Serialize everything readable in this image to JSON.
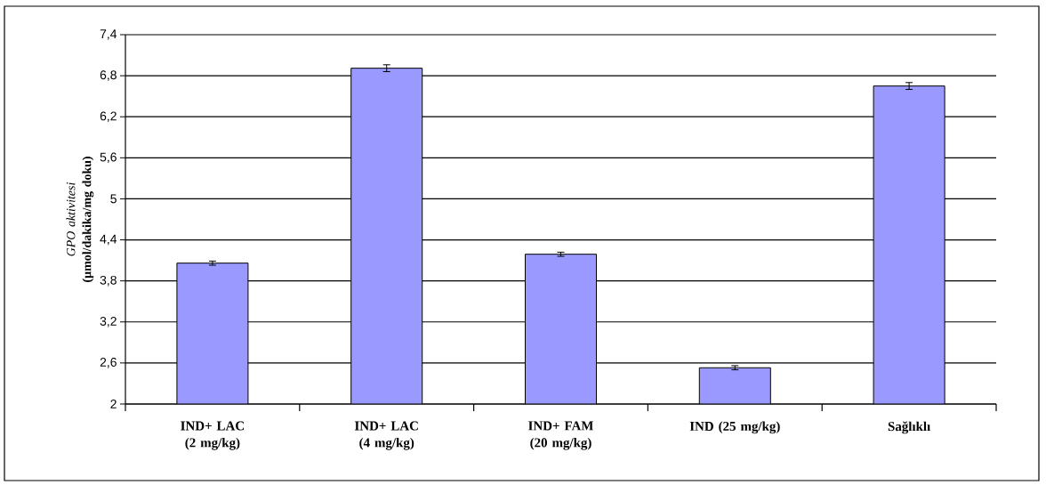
{
  "chart_data": {
    "type": "bar",
    "ylabel": "*GPO aktivitesi* **(µmol/dakika/mg doku)**",
    "categories": [
      "IND+ LAC (2 mg/kg)",
      "IND+ LAC (4 mg/kg)",
      "IND+ FAM (20 mg/kg)",
      "IND (25 mg/kg)",
      "Sağlıklı"
    ],
    "values": [
      4.06,
      6.91,
      4.19,
      2.53,
      6.65
    ],
    "errors": [
      0.03,
      0.05,
      0.03,
      0.03,
      0.05
    ],
    "color": "#9999ff",
    "ylim": [
      2,
      7.4
    ],
    "yticks": [
      {
        "value": 2,
        "label": "2"
      },
      {
        "value": 2.6,
        "label": "2,6"
      },
      {
        "value": 3.2,
        "label": "3,2"
      },
      {
        "value": 3.8,
        "label": "3,8"
      },
      {
        "value": 4.4,
        "label": "4,4"
      },
      {
        "value": 5,
        "label": "5"
      },
      {
        "value": 5.6,
        "label": "5,6"
      },
      {
        "value": 6.2,
        "label": "6,2"
      },
      {
        "value": 6.8,
        "label": "6,8"
      },
      {
        "value": 7.4,
        "label": "7,4"
      }
    ],
    "grid": "y"
  }
}
